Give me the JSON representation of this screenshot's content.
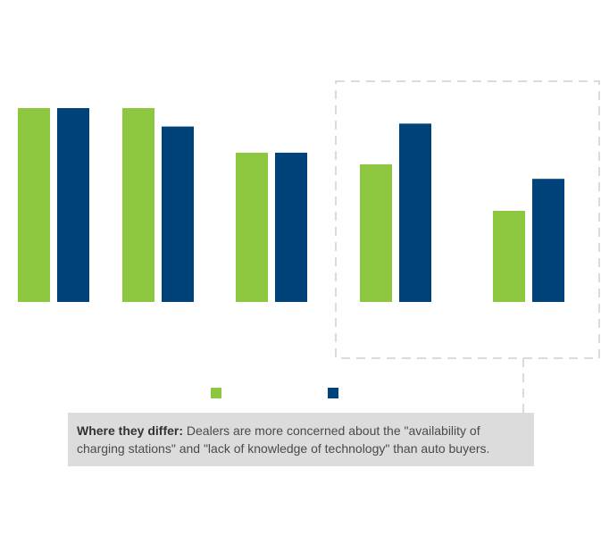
{
  "chart_data": {
    "type": "bar",
    "categories": [
      "",
      "",
      "",
      "",
      ""
    ],
    "series": [
      {
        "values": [
          100,
          100,
          77,
          71,
          47
        ],
        "color": "#8dc63f"
      },
      {
        "values": [
          100,
          90.5,
          77,
          92,
          63.5
        ],
        "color": "#00427a"
      }
    ],
    "ylim": [
      0,
      100
    ],
    "title": "",
    "xlabel": "",
    "ylabel": "",
    "grid": false,
    "legend": "bottom",
    "highlight_categories": [
      3,
      4
    ]
  },
  "note": {
    "label": "Where they differ:",
    "text": " Dealers are more concerned about the \"availability of charging stations\" and \"lack of knowledge of technology\" than auto buyers."
  }
}
